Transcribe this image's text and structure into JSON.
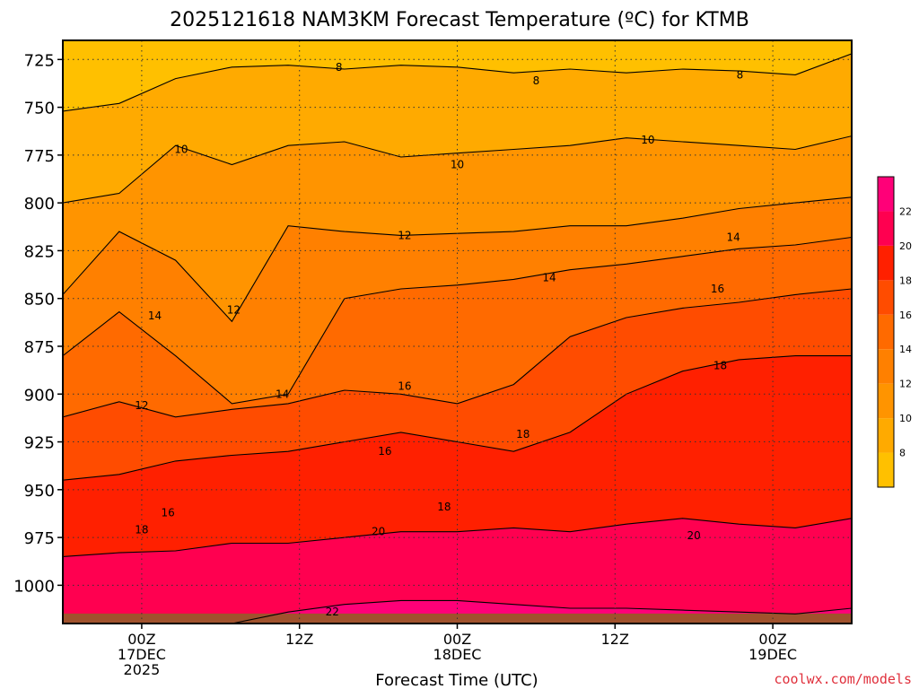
{
  "chart_data": {
    "type": "heatmap",
    "title": "2025121618 NAM3KM Forecast Temperature (ºC) for KTMB",
    "xlabel": "Forecast Time (UTC)",
    "credit": "coolwx.com/models",
    "y_axis": {
      "quantity": "pressure",
      "ticks": [
        725,
        750,
        775,
        800,
        825,
        850,
        875,
        900,
        925,
        950,
        975,
        1000
      ],
      "range": [
        715,
        1020
      ],
      "inverted": true
    },
    "x_axis": {
      "range_hours": [
        -6,
        54
      ],
      "ticks": [
        {
          "hour": 0,
          "lines": [
            "00Z",
            "17DEC",
            "2025"
          ]
        },
        {
          "hour": 12,
          "lines": [
            "12Z"
          ]
        },
        {
          "hour": 24,
          "lines": [
            "00Z",
            "18DEC"
          ]
        },
        {
          "hour": 36,
          "lines": [
            "12Z"
          ]
        },
        {
          "hour": 48,
          "lines": [
            "00Z",
            "19DEC"
          ]
        }
      ]
    },
    "grid": true,
    "colorbar": {
      "placement": "right",
      "bins": [
        {
          "min": 6,
          "max": 8,
          "color": "#ffc000"
        },
        {
          "min": 8,
          "max": 10,
          "color": "#ffaa00"
        },
        {
          "min": 10,
          "max": 12,
          "color": "#ff9400"
        },
        {
          "min": 12,
          "max": 14,
          "color": "#ff8000"
        },
        {
          "min": 14,
          "max": 16,
          "color": "#ff6a00"
        },
        {
          "min": 16,
          "max": 18,
          "color": "#ff4c00"
        },
        {
          "min": 18,
          "max": 20,
          "color": "#ff2000"
        },
        {
          "min": 20,
          "max": 22,
          "color": "#ff0050"
        },
        {
          "min": 22,
          "max": 24,
          "color": "#ff0078"
        }
      ],
      "labels": [
        8,
        10,
        12,
        14,
        16,
        18,
        20,
        22
      ]
    },
    "ground_color": "#a0522d",
    "isotherms": [
      {
        "value": 8,
        "p": [
          752,
          748,
          735,
          729,
          728,
          730,
          728,
          729,
          732,
          730,
          732,
          730,
          731,
          733,
          722
        ]
      },
      {
        "value": 10,
        "p": [
          800,
          795,
          770,
          780,
          770,
          768,
          776,
          774,
          772,
          770,
          766,
          768,
          770,
          772,
          765
        ]
      },
      {
        "value": 12,
        "p": [
          848,
          815,
          830,
          862,
          812,
          815,
          817,
          816,
          815,
          812,
          812,
          808,
          803,
          800,
          797
        ]
      },
      {
        "value": 14,
        "p": [
          880,
          857,
          880,
          905,
          900,
          850,
          845,
          843,
          840,
          835,
          832,
          828,
          824,
          822,
          818
        ]
      },
      {
        "value": 16,
        "p": [
          912,
          904,
          912,
          908,
          905,
          898,
          900,
          905,
          895,
          870,
          860,
          855,
          852,
          848,
          845
        ]
      },
      {
        "value": 18,
        "p": [
          945,
          942,
          935,
          932,
          930,
          925,
          920,
          925,
          930,
          920,
          900,
          888,
          882,
          880,
          880
        ]
      },
      {
        "value": 20,
        "p": [
          985,
          983,
          982,
          978,
          978,
          975,
          972,
          972,
          970,
          972,
          968,
          965,
          968,
          970,
          965
        ]
      },
      {
        "value": 22,
        "p": [
          1020,
          1020,
          1020,
          1020,
          1014,
          1010,
          1008,
          1008,
          1010,
          1012,
          1012,
          1013,
          1014,
          1015,
          1012
        ]
      }
    ],
    "contour_labels": [
      {
        "text": "8",
        "hour": 15.0,
        "p": 729
      },
      {
        "text": "8",
        "hour": 30.0,
        "p": 736
      },
      {
        "text": "8",
        "hour": 45.5,
        "p": 733
      },
      {
        "text": "10",
        "hour": 3.0,
        "p": 772
      },
      {
        "text": "10",
        "hour": 24.0,
        "p": 780
      },
      {
        "text": "10",
        "hour": 38.5,
        "p": 767
      },
      {
        "text": "12",
        "hour": 7.0,
        "p": 856
      },
      {
        "text": "12",
        "hour": 20.0,
        "p": 817
      },
      {
        "text": "12",
        "hour": 0.0,
        "p": 906
      },
      {
        "text": "14",
        "hour": 1.0,
        "p": 859
      },
      {
        "text": "14",
        "hour": 10.7,
        "p": 900
      },
      {
        "text": "14",
        "hour": 31.0,
        "p": 839
      },
      {
        "text": "14",
        "hour": 45.0,
        "p": 818
      },
      {
        "text": "16",
        "hour": 20.0,
        "p": 896
      },
      {
        "text": "16",
        "hour": 18.5,
        "p": 930
      },
      {
        "text": "16",
        "hour": 2.0,
        "p": 962
      },
      {
        "text": "16",
        "hour": 43.8,
        "p": 845
      },
      {
        "text": "18",
        "hour": 0.0,
        "p": 971
      },
      {
        "text": "18",
        "hour": 23.0,
        "p": 959
      },
      {
        "text": "18",
        "hour": 29.0,
        "p": 921
      },
      {
        "text": "18",
        "hour": 44.0,
        "p": 885
      },
      {
        "text": "20",
        "hour": 18.0,
        "p": 972
      },
      {
        "text": "20",
        "hour": 42.0,
        "p": 974
      },
      {
        "text": "22",
        "hour": 14.5,
        "p": 1014
      }
    ]
  }
}
